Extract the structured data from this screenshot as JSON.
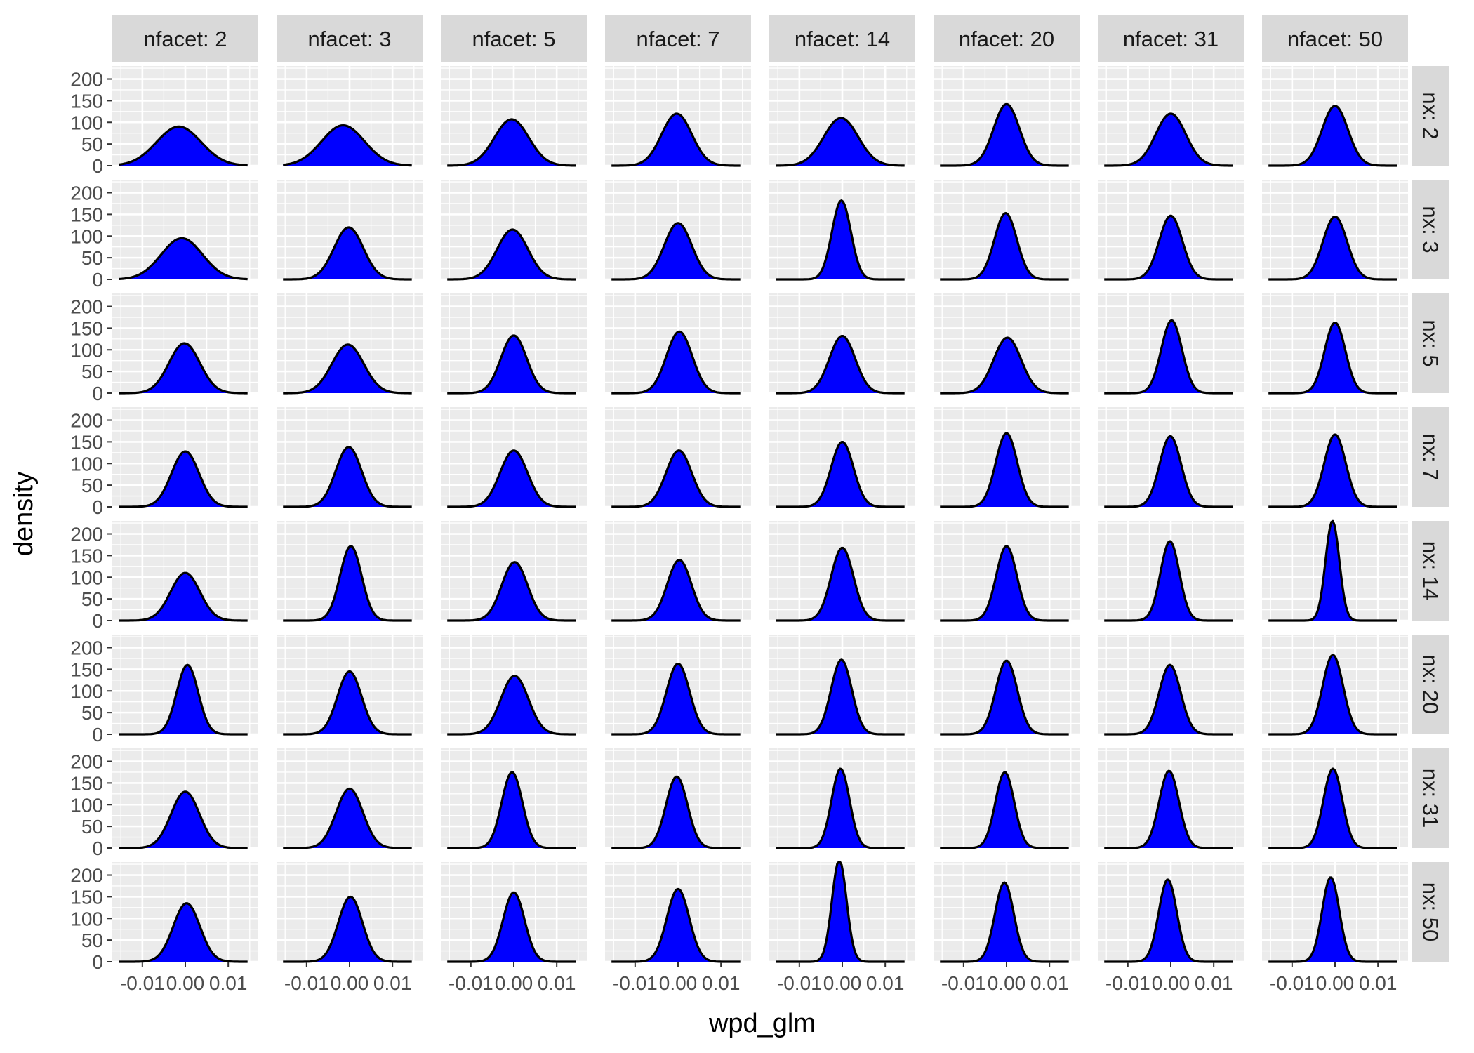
{
  "chart_data": {
    "type": "area",
    "subtype": "faceted-density",
    "xlabel": "wpd_glm",
    "ylabel": "density",
    "x_range": [
      -0.017,
      0.017
    ],
    "y_range": [
      0,
      230
    ],
    "x_ticks": [
      -0.01,
      0.0,
      0.01
    ],
    "x_tick_labels": [
      "-0.01",
      "0.00",
      "0.01"
    ],
    "y_ticks": [
      0,
      50,
      100,
      150,
      200
    ],
    "y_tick_labels": [
      "0",
      "50",
      "100",
      "150",
      "200"
    ],
    "fill_color": "#0000ff",
    "line_color": "#000000",
    "panel_background": "#ebebeb",
    "grid_color": "#ffffff",
    "strip_background": "#d9d9d9",
    "grid": true,
    "legend": "none",
    "col_facet_labels": [
      "nfacet: 2",
      "nfacet: 3",
      "nfacet: 5",
      "nfacet: 7",
      "nfacet: 14",
      "nfacet: 20",
      "nfacet: 31",
      "nfacet: 50"
    ],
    "row_facet_labels": [
      "nx: 2",
      "nx: 3",
      "nx: 5",
      "nx: 7",
      "nx: 14",
      "nx: 20",
      "nx: 31",
      "nx: 50"
    ],
    "panels": [
      [
        {
          "center": -0.0015,
          "sd": 0.0052,
          "peak": 90
        },
        {
          "center": -0.0015,
          "sd": 0.005,
          "peak": 93
        },
        {
          "center": -0.0005,
          "sd": 0.004,
          "peak": 107
        },
        {
          "center": -0.0003,
          "sd": 0.0035,
          "peak": 120
        },
        {
          "center": -0.0003,
          "sd": 0.004,
          "peak": 110
        },
        {
          "center": 0.0,
          "sd": 0.003,
          "peak": 142
        },
        {
          "center": 0.0,
          "sd": 0.0035,
          "peak": 120
        },
        {
          "center": 0.0,
          "sd": 0.003,
          "peak": 138
        }
      ],
      [
        {
          "center": -0.0008,
          "sd": 0.0048,
          "peak": 95
        },
        {
          "center": -0.0002,
          "sd": 0.0034,
          "peak": 120
        },
        {
          "center": -0.0003,
          "sd": 0.0036,
          "peak": 115
        },
        {
          "center": 0.0,
          "sd": 0.0032,
          "peak": 130
        },
        {
          "center": -0.0002,
          "sd": 0.0022,
          "peak": 182
        },
        {
          "center": -0.0002,
          "sd": 0.0026,
          "peak": 153
        },
        {
          "center": 0.0,
          "sd": 0.0027,
          "peak": 147
        },
        {
          "center": 0.0,
          "sd": 0.0028,
          "peak": 145
        }
      ],
      [
        {
          "center": -0.0002,
          "sd": 0.0036,
          "peak": 115
        },
        {
          "center": -0.0004,
          "sd": 0.0037,
          "peak": 112
        },
        {
          "center": 0.0,
          "sd": 0.003,
          "peak": 133
        },
        {
          "center": 0.0003,
          "sd": 0.003,
          "peak": 142
        },
        {
          "center": 0.0,
          "sd": 0.003,
          "peak": 132
        },
        {
          "center": 0.0002,
          "sd": 0.0032,
          "peak": 128
        },
        {
          "center": 0.0002,
          "sd": 0.0024,
          "peak": 168
        },
        {
          "center": 0.0,
          "sd": 0.0024,
          "peak": 163
        }
      ],
      [
        {
          "center": 0.0,
          "sd": 0.0032,
          "peak": 128
        },
        {
          "center": -0.0002,
          "sd": 0.003,
          "peak": 138
        },
        {
          "center": 0.0,
          "sd": 0.0032,
          "peak": 130
        },
        {
          "center": 0.0002,
          "sd": 0.003,
          "peak": 130
        },
        {
          "center": 0.0,
          "sd": 0.0026,
          "peak": 150
        },
        {
          "center": 0.0,
          "sd": 0.0025,
          "peak": 170
        },
        {
          "center": -0.0001,
          "sd": 0.0025,
          "peak": 163
        },
        {
          "center": 0.0,
          "sd": 0.0025,
          "peak": 167
        }
      ],
      [
        {
          "center": 0.0,
          "sd": 0.0034,
          "peak": 110
        },
        {
          "center": 0.0003,
          "sd": 0.0025,
          "peak": 172
        },
        {
          "center": 0.0002,
          "sd": 0.003,
          "peak": 135
        },
        {
          "center": 0.0003,
          "sd": 0.0028,
          "peak": 140
        },
        {
          "center": 0.0,
          "sd": 0.0026,
          "peak": 168
        },
        {
          "center": 0.0,
          "sd": 0.0024,
          "peak": 172
        },
        {
          "center": -0.0002,
          "sd": 0.0022,
          "peak": 183
        },
        {
          "center": -0.0006,
          "sd": 0.0016,
          "peak": 230
        }
      ],
      [
        {
          "center": 0.0005,
          "sd": 0.0025,
          "peak": 160
        },
        {
          "center": 0.0,
          "sd": 0.0028,
          "peak": 145
        },
        {
          "center": 0.0002,
          "sd": 0.0032,
          "peak": 135
        },
        {
          "center": 0.0,
          "sd": 0.0027,
          "peak": 163
        },
        {
          "center": -0.0002,
          "sd": 0.0024,
          "peak": 172
        },
        {
          "center": 0.0,
          "sd": 0.0025,
          "peak": 170
        },
        {
          "center": -0.0002,
          "sd": 0.0025,
          "peak": 160
        },
        {
          "center": -0.0005,
          "sd": 0.0024,
          "peak": 183
        }
      ],
      [
        {
          "center": 0.0,
          "sd": 0.0033,
          "peak": 130
        },
        {
          "center": 0.0,
          "sd": 0.0031,
          "peak": 137
        },
        {
          "center": -0.0004,
          "sd": 0.0024,
          "peak": 175
        },
        {
          "center": -0.0003,
          "sd": 0.0025,
          "peak": 165
        },
        {
          "center": -0.0004,
          "sd": 0.0021,
          "peak": 183
        },
        {
          "center": -0.0004,
          "sd": 0.0022,
          "peak": 175
        },
        {
          "center": -0.0004,
          "sd": 0.0023,
          "peak": 178
        },
        {
          "center": -0.0005,
          "sd": 0.0022,
          "peak": 183
        }
      ],
      [
        {
          "center": 0.0003,
          "sd": 0.0031,
          "peak": 135
        },
        {
          "center": 0.0002,
          "sd": 0.0028,
          "peak": 150
        },
        {
          "center": 0.0,
          "sd": 0.0025,
          "peak": 160
        },
        {
          "center": 0.0,
          "sd": 0.0026,
          "peak": 168
        },
        {
          "center": -0.0007,
          "sd": 0.0017,
          "peak": 235
        },
        {
          "center": -0.0005,
          "sd": 0.0022,
          "peak": 183
        },
        {
          "center": -0.0007,
          "sd": 0.0021,
          "peak": 190
        },
        {
          "center": -0.001,
          "sd": 0.002,
          "peak": 195
        }
      ]
    ]
  }
}
